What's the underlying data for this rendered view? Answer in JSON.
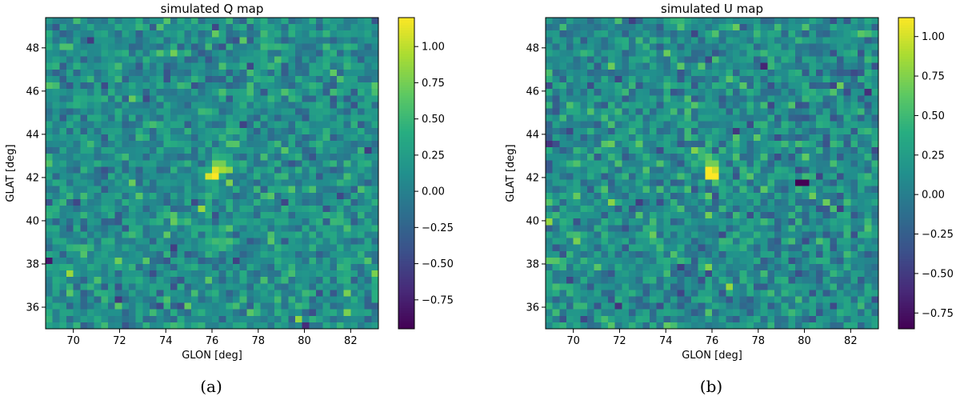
{
  "chart_data": [
    {
      "type": "heatmap",
      "title": "simulated Q map",
      "xlabel": "GLON [deg]",
      "ylabel": "GLAT [deg]",
      "caption": "(a)",
      "xlim": [
        68.8,
        83.2
      ],
      "ylim": [
        35.0,
        49.4
      ],
      "xticks": [
        70,
        72,
        74,
        76,
        78,
        80,
        82
      ],
      "yticks": [
        36,
        38,
        40,
        42,
        44,
        46,
        48
      ],
      "grid": [
        48,
        48
      ],
      "value_range": [
        -0.95,
        1.2
      ],
      "colorbar_ticks": [
        1.0,
        0.75,
        0.5,
        0.25,
        0.0,
        -0.25,
        -0.5,
        -0.75
      ],
      "colorbar_tick_labels": [
        "1.00",
        "0.75",
        "0.50",
        "0.25",
        "0.00",
        "−0.25",
        "−0.50",
        "−0.75"
      ],
      "noise_scale": 0.22,
      "seed": 1729,
      "hotspots": [
        {
          "lon": 76.0,
          "lat": 42.0,
          "value": 1.05
        },
        {
          "lon": 76.3,
          "lat": 42.3,
          "value": 0.9
        },
        {
          "lon": 76.6,
          "lat": 42.3,
          "value": 0.8
        },
        {
          "lon": 76.3,
          "lat": 42.6,
          "value": 0.75
        }
      ]
    },
    {
      "type": "heatmap",
      "title": "simulated U map",
      "xlabel": "GLON [deg]",
      "ylabel": "GLAT [deg]",
      "caption": "(b)",
      "xlim": [
        68.8,
        83.2
      ],
      "ylim": [
        35.0,
        49.4
      ],
      "xticks": [
        70,
        72,
        74,
        76,
        78,
        80,
        82
      ],
      "yticks": [
        36,
        38,
        40,
        42,
        44,
        46,
        48
      ],
      "grid": [
        48,
        48
      ],
      "value_range": [
        -0.85,
        1.12
      ],
      "colorbar_ticks": [
        1.0,
        0.75,
        0.5,
        0.25,
        0.0,
        -0.25,
        -0.5,
        -0.75
      ],
      "colorbar_tick_labels": [
        "1.00",
        "0.75",
        "0.50",
        "0.25",
        "0.00",
        "−0.25",
        "−0.50",
        "−0.75"
      ],
      "noise_scale": 0.22,
      "seed": 4242,
      "hotspots": [
        {
          "lon": 76.0,
          "lat": 42.0,
          "value": 1.1
        },
        {
          "lon": 75.9,
          "lat": 42.3,
          "value": 0.95
        },
        {
          "lon": 76.2,
          "lat": 42.3,
          "value": 0.85
        },
        {
          "lon": 76.0,
          "lat": 42.6,
          "value": 0.7
        },
        {
          "lon": 79.9,
          "lat": 41.7,
          "value": -0.85
        }
      ]
    }
  ]
}
